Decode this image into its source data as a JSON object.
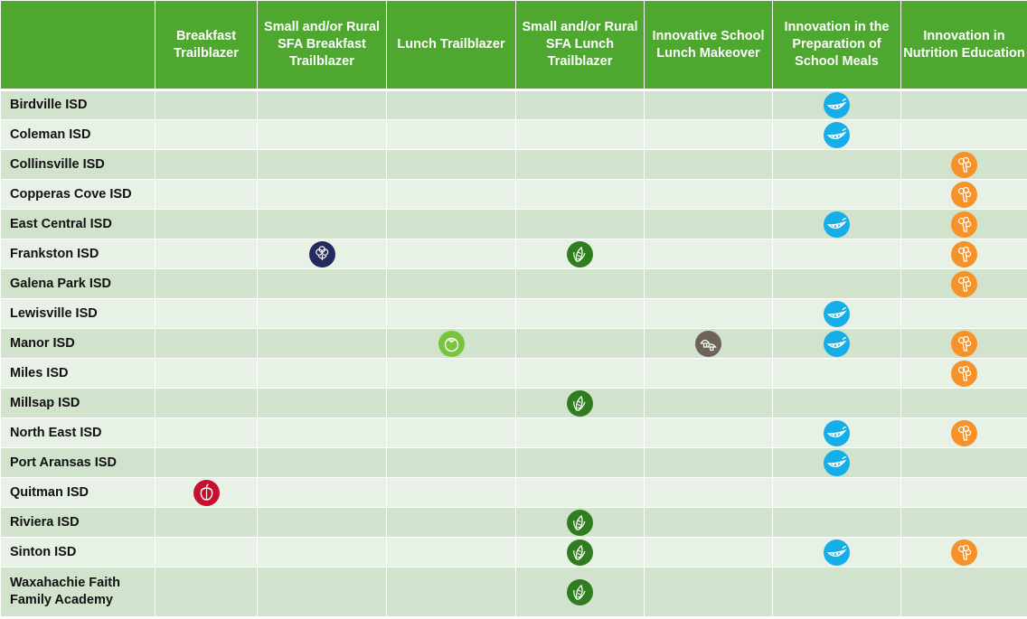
{
  "header": {
    "corner": "",
    "columns": [
      "Breakfast Trailblazer",
      "Small and/or Rural SFA Breakfast Trailblazer",
      "Lunch Trailblazer",
      "Small and/or Rural SFA Lunch Trailblazer",
      "Innovative School Lunch Makeover",
      "Innovation in the Preparation of School Meals",
      "Innovation in Nutrition Education"
    ]
  },
  "column_icons": {
    "0": {
      "icon": "bell-pepper-icon",
      "color": "#c8102e"
    },
    "1": {
      "icon": "cauliflower-icon",
      "color": "#232a5c"
    },
    "2": {
      "icon": "tomato-icon",
      "color": "#78c43a"
    },
    "3": {
      "icon": "corn-icon",
      "color": "#2f7d1f"
    },
    "4": {
      "icon": "mushroom-icon",
      "color": "#6e6259"
    },
    "5": {
      "icon": "pea-pod-icon",
      "color": "#15aee8"
    },
    "6": {
      "icon": "broccoli-icon",
      "color": "#f5922a"
    }
  },
  "rows": [
    {
      "district": "Birdville ISD",
      "awards": [
        5
      ]
    },
    {
      "district": "Coleman ISD",
      "awards": [
        5
      ]
    },
    {
      "district": "Collinsville ISD",
      "awards": [
        6
      ]
    },
    {
      "district": "Copperas Cove ISD",
      "awards": [
        6
      ]
    },
    {
      "district": "East Central ISD",
      "awards": [
        5,
        6
      ]
    },
    {
      "district": "Frankston ISD",
      "awards": [
        1,
        3,
        6
      ]
    },
    {
      "district": "Galena Park ISD",
      "awards": [
        6
      ]
    },
    {
      "district": "Lewisville ISD",
      "awards": [
        5
      ]
    },
    {
      "district": "Manor ISD",
      "awards": [
        2,
        4,
        5,
        6
      ]
    },
    {
      "district": "Miles ISD",
      "awards": [
        6
      ]
    },
    {
      "district": "Millsap ISD",
      "awards": [
        3
      ]
    },
    {
      "district": "North East ISD",
      "awards": [
        5,
        6
      ]
    },
    {
      "district": "Port Aransas ISD",
      "awards": [
        5
      ]
    },
    {
      "district": "Quitman ISD",
      "awards": [
        0
      ]
    },
    {
      "district": "Riviera ISD",
      "awards": [
        3
      ]
    },
    {
      "district": "Sinton ISD",
      "awards": [
        3,
        5,
        6
      ]
    },
    {
      "district": "Waxahachie Faith Family Academy",
      "awards": [
        3
      ]
    }
  ]
}
